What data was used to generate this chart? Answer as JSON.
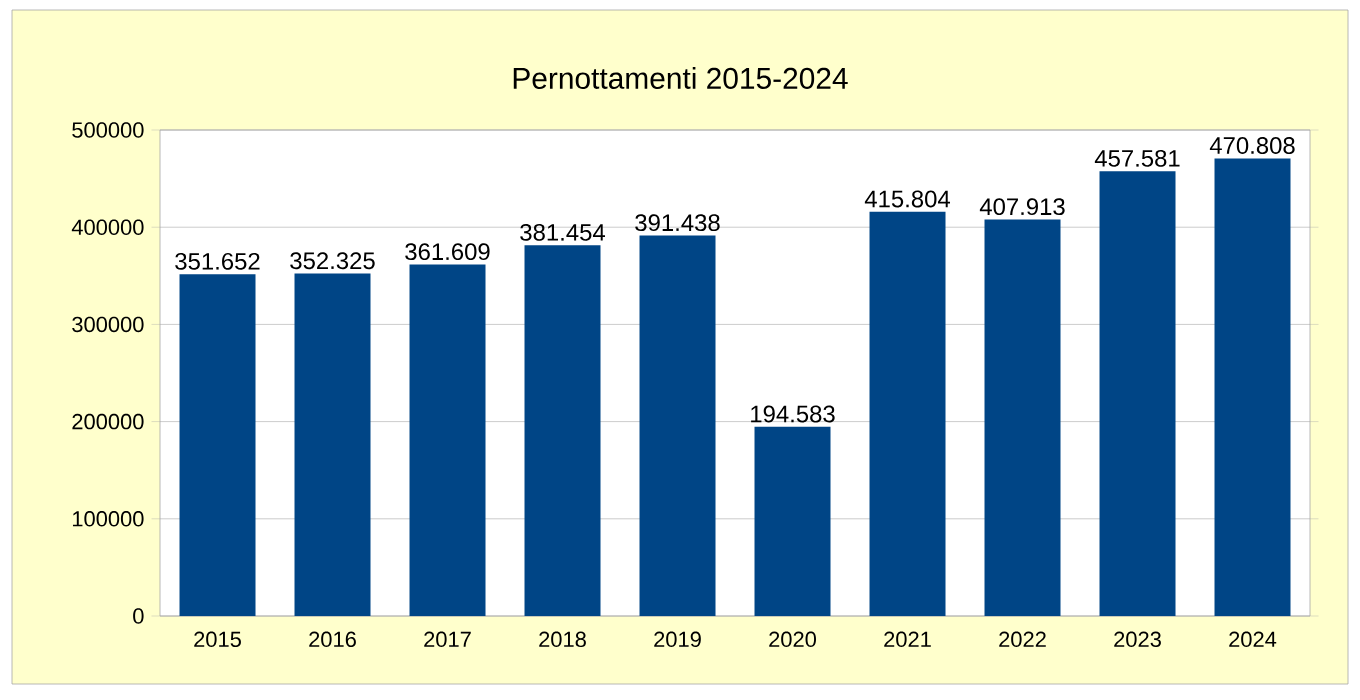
{
  "chart_data": {
    "type": "bar",
    "title": "Pernottamenti 2015-2024",
    "categories": [
      "2015",
      "2016",
      "2017",
      "2018",
      "2019",
      "2020",
      "2021",
      "2022",
      "2023",
      "2024"
    ],
    "values": [
      351652,
      352325,
      361609,
      381454,
      391438,
      194583,
      415804,
      407913,
      457581,
      470808
    ],
    "value_labels": [
      "351.652",
      "352.325",
      "361.609",
      "381.454",
      "391.438",
      "194.583",
      "415.804",
      "407.913",
      "457.581",
      "470.808"
    ],
    "color": "#004586",
    "ylim": [
      0,
      500000
    ],
    "yticks": [
      0,
      100000,
      200000,
      300000,
      400000,
      500000
    ],
    "grid": "y"
  }
}
